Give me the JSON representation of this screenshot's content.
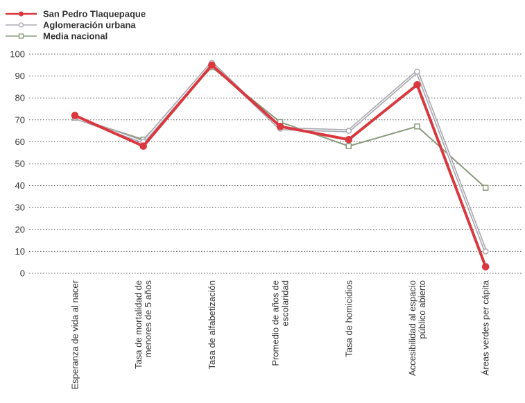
{
  "chart_data": {
    "type": "line",
    "categories": [
      [
        "Esperanza de vida al nacer"
      ],
      [
        "Tasa de mortalidad de",
        "menores de 5 años"
      ],
      [
        "Tasa de alfabetización"
      ],
      [
        "Promedio de años de",
        "escolaridad"
      ],
      [
        "Tasa de homicidios"
      ],
      [
        "Accesibilidad al espacio",
        "público abierto"
      ],
      [
        "Áreas verdes per cápita"
      ]
    ],
    "series": [
      {
        "name": "San Pedro Tlaquepaque",
        "values": [
          72,
          58,
          95,
          67,
          61,
          86,
          3
        ],
        "color": "#d9383f",
        "marker": "circle-filled"
      },
      {
        "name": "Aglomeración urbana",
        "values": [
          71,
          60,
          96,
          66,
          65,
          92,
          10
        ],
        "color": "#a9a9b1",
        "marker": "circle-open"
      },
      {
        "name": "Media nacional",
        "values": [
          71,
          61,
          94,
          69,
          58,
          67,
          39
        ],
        "color": "#8a9a7a",
        "marker": "square-open"
      }
    ],
    "yticks": [
      0,
      10,
      20,
      30,
      40,
      50,
      60,
      70,
      80,
      90,
      100
    ],
    "ylim": [
      0,
      100
    ],
    "title": "",
    "xlabel": "",
    "ylabel": "",
    "grid": "horizontal-dotted",
    "legend_position": "top-left",
    "gridline_color": "#555555"
  }
}
